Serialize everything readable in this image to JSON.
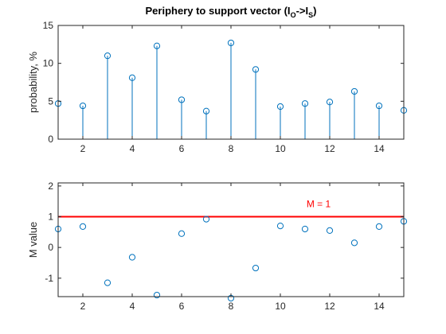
{
  "chart_data": [
    {
      "type": "stem",
      "title_main": "Periphery to support vector (I",
      "title_sub1": "O",
      "title_mid": "->I",
      "title_sub2": "S",
      "title_end": ")",
      "xlabel": "",
      "ylabel": "probability, %",
      "xlim": [
        1,
        15
      ],
      "ylim": [
        0,
        15
      ],
      "xticks": [
        2,
        4,
        6,
        8,
        10,
        12,
        14
      ],
      "yticks": [
        0,
        5,
        10,
        15
      ],
      "x": [
        1,
        2,
        3,
        4,
        5,
        6,
        7,
        8,
        9,
        10,
        11,
        12,
        13,
        14,
        15
      ],
      "values": [
        4.7,
        4.4,
        11.0,
        8.1,
        12.3,
        5.2,
        3.7,
        12.7,
        9.2,
        4.3,
        4.7,
        4.9,
        6.3,
        4.4,
        3.8
      ],
      "color": "#0072BD",
      "grid": false
    },
    {
      "type": "scatter",
      "xlabel": "",
      "ylabel": "M value",
      "xlim": [
        1,
        15
      ],
      "ylim": [
        -1.6,
        2.1
      ],
      "xticks": [
        2,
        4,
        6,
        8,
        10,
        12,
        14
      ],
      "yticks": [
        -1,
        0,
        1,
        2
      ],
      "x": [
        1,
        2,
        3,
        4,
        5,
        6,
        7,
        8,
        9,
        10,
        11,
        12,
        13,
        14,
        15
      ],
      "values": [
        0.6,
        0.68,
        -1.15,
        -0.32,
        -1.55,
        0.45,
        0.92,
        -1.65,
        -0.67,
        0.7,
        0.6,
        0.55,
        0.15,
        0.68,
        0.85
      ],
      "color": "#0072BD",
      "reference_line": {
        "y": 1,
        "color": "#FF0000",
        "label": "M = 1"
      },
      "grid": false
    }
  ]
}
